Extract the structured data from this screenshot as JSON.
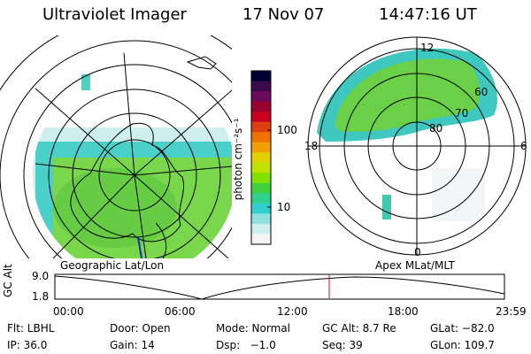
{
  "header": {
    "instrument": "Ultraviolet Imager",
    "date": "17 Nov 07",
    "time": "14:47:16 UT"
  },
  "left_panel": {
    "caption": "Geographic Lat/Lon"
  },
  "right_panel": {
    "caption": "Apex MLat/MLT",
    "mlt_labels": [
      "12",
      "18",
      "6",
      "0"
    ],
    "mlat_labels": [
      "60",
      "70",
      "80"
    ]
  },
  "colorbar": {
    "label": "photon cm⁻²s⁻¹",
    "ticks": [
      "100",
      "10"
    ],
    "colors": [
      "#000033",
      "#3a0a4a",
      "#6a0a5a",
      "#9a0030",
      "#c80020",
      "#e04010",
      "#f07000",
      "#f0a000",
      "#e0d000",
      "#c0e000",
      "#80e000",
      "#40d040",
      "#30d090",
      "#30d0d0",
      "#90e0e0",
      "#d0eeee",
      "#f4f4f4"
    ]
  },
  "timeline": {
    "ylabel": "GC Alt",
    "ymax_label": "9.0",
    "ymin_label": "1.8",
    "xticks": [
      "00:00",
      "06:00",
      "12:00",
      "18:00",
      "23:59"
    ],
    "marker_color": "#d01010"
  },
  "info": {
    "flt": "Flt: LBHL",
    "door": "Door: Open",
    "mode": "Mode: Normal",
    "gcalt": "GC Alt: 8.7 Re",
    "glat": "GLat: −82.0",
    "ip": "IP: 36.0",
    "gain": "Gain: 14",
    "dsp": "Dsp:   −1.0",
    "seq": "Seq: 39",
    "glon": "GLon: 109.7"
  }
}
